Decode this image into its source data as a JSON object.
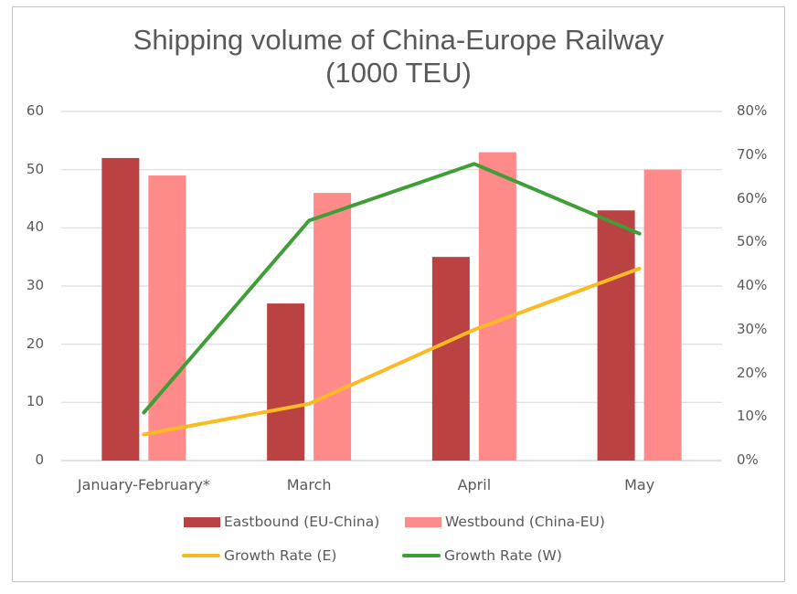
{
  "chart_data": {
    "type": "bar",
    "combo": "bar+line (dual axis)",
    "title": "Shipping volume of China-Europe Railway (1000 TEU)",
    "title_lines": [
      "Shipping volume of China-Europe Railway",
      "(1000 TEU)"
    ],
    "xlabel": "",
    "ylabel": "",
    "y2label": "",
    "categories": [
      "January-February*",
      "March",
      "April",
      "May"
    ],
    "series": [
      {
        "name": "Eastbound (EU-China)",
        "type": "bar",
        "axis": "left",
        "color": "#BB4242",
        "values": [
          52,
          27,
          35,
          43
        ]
      },
      {
        "name": "Westbound (China-EU)",
        "type": "bar",
        "axis": "left",
        "color": "#FF8A8A",
        "values": [
          49,
          46,
          53,
          50
        ]
      },
      {
        "name": "Growth Rate (E)",
        "type": "line",
        "axis": "right",
        "color": "#FBBA24",
        "values": [
          6,
          13,
          30,
          44
        ],
        "unit": "%"
      },
      {
        "name": "Growth Rate (W)",
        "type": "line",
        "axis": "right",
        "color": "#3F9E38",
        "values": [
          11,
          55,
          68,
          52
        ],
        "unit": "%"
      }
    ],
    "ylim": [
      0,
      60
    ],
    "y2lim": [
      0,
      80
    ],
    "yticks": [
      "0",
      "10",
      "20",
      "30",
      "40",
      "50",
      "60"
    ],
    "y2ticks": [
      "0%",
      "10%",
      "20%",
      "30%",
      "40%",
      "50%",
      "60%",
      "70%",
      "80%"
    ],
    "grid": true,
    "legend_position": "bottom"
  },
  "legend": [
    {
      "label": "Eastbound (EU-China)",
      "kind": "box",
      "color": "#BB4242"
    },
    {
      "label": "Westbound (China-EU)",
      "kind": "box",
      "color": "#FF8A8A"
    },
    {
      "label": "Growth Rate (E)",
      "kind": "line",
      "color": "#FBBA24"
    },
    {
      "label": "Growth Rate (W)",
      "kind": "line",
      "color": "#3F9E38"
    }
  ]
}
